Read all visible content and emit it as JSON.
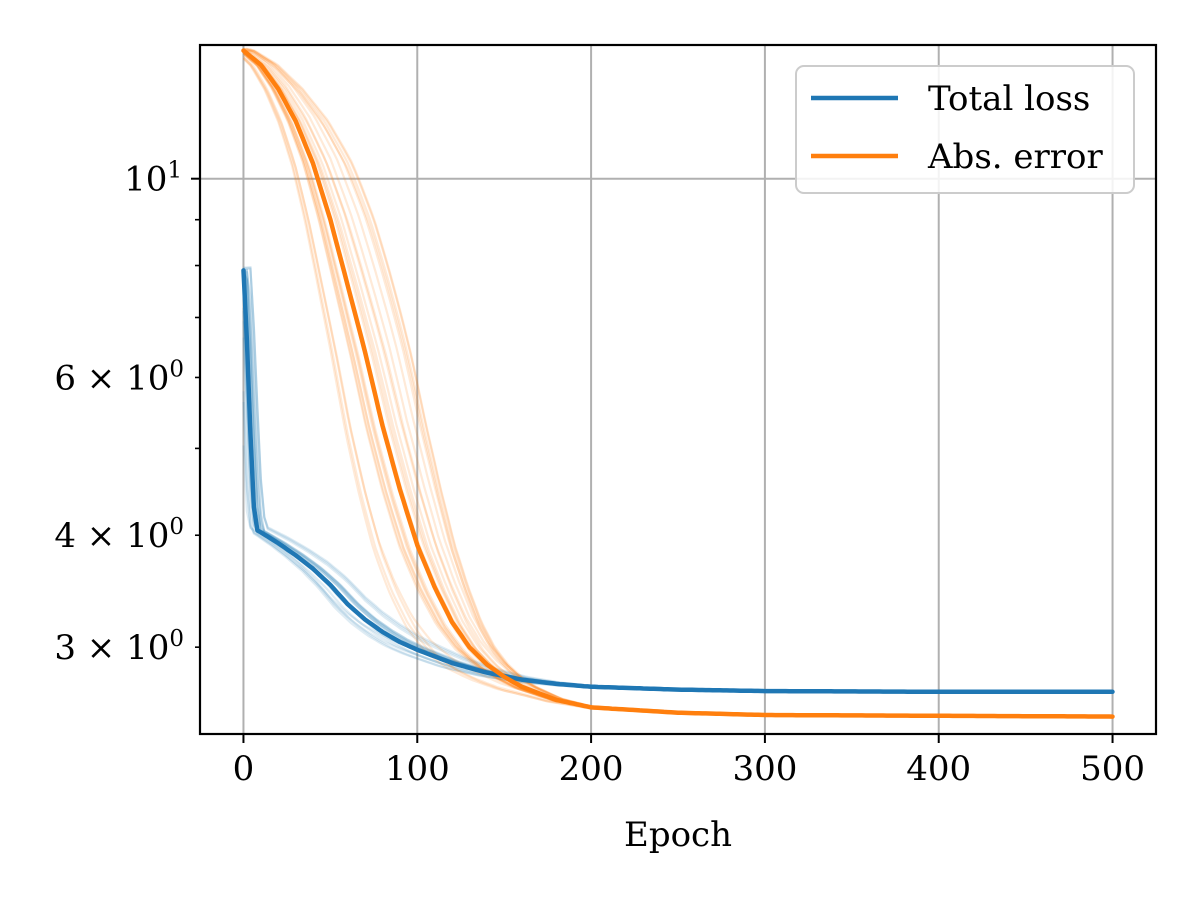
{
  "chart_data": {
    "type": "line",
    "title": "",
    "xlabel": "Epoch",
    "ylabel": "",
    "xscale": "linear",
    "yscale": "log",
    "xlim": [
      -25,
      525
    ],
    "ylim": [
      2.4,
      14.1
    ],
    "grid": true,
    "legend_position": "top-right",
    "x_ticks": [
      {
        "value": 0,
        "label": "0"
      },
      {
        "value": 100,
        "label": "100"
      },
      {
        "value": 200,
        "label": "200"
      },
      {
        "value": 300,
        "label": "300"
      },
      {
        "value": 400,
        "label": "400"
      },
      {
        "value": 500,
        "label": "500"
      }
    ],
    "y_major_ticks": [
      {
        "value": 10,
        "label_base": "10",
        "label_exp": "1"
      }
    ],
    "y_minor_ticks": [
      {
        "value": 3,
        "label_coef": "3",
        "label_base": "10",
        "label_exp": "0"
      },
      {
        "value": 4,
        "label_coef": "4",
        "label_base": "10",
        "label_exp": "0"
      },
      {
        "value": 5,
        "label_coef": "",
        "label_base": "",
        "label_exp": ""
      },
      {
        "value": 6,
        "label_coef": "6",
        "label_base": "10",
        "label_exp": "0"
      },
      {
        "value": 7,
        "label_coef": "",
        "label_base": "",
        "label_exp": ""
      },
      {
        "value": 8,
        "label_coef": "",
        "label_base": "",
        "label_exp": ""
      },
      {
        "value": 9,
        "label_coef": "",
        "label_base": "",
        "label_exp": ""
      }
    ],
    "series": [
      {
        "name": "Total loss",
        "color": "#1f77b4",
        "x": [
          0,
          2,
          4,
          6,
          8,
          10,
          20,
          30,
          40,
          50,
          60,
          70,
          80,
          90,
          100,
          120,
          140,
          160,
          180,
          200,
          250,
          300,
          400,
          500
        ],
        "values": [
          7.9,
          6.6,
          5.2,
          4.3,
          4.05,
          4.03,
          3.92,
          3.8,
          3.67,
          3.52,
          3.35,
          3.22,
          3.12,
          3.04,
          2.98,
          2.88,
          2.81,
          2.76,
          2.73,
          2.71,
          2.69,
          2.68,
          2.675,
          2.675
        ]
      },
      {
        "name": "Abs. error",
        "color": "#ff7f0e",
        "x": [
          0,
          10,
          20,
          30,
          40,
          50,
          60,
          70,
          80,
          90,
          100,
          110,
          120,
          130,
          140,
          150,
          160,
          180,
          200,
          250,
          300,
          400,
          500
        ],
        "values": [
          13.9,
          13.4,
          12.6,
          11.6,
          10.4,
          9.0,
          7.6,
          6.4,
          5.3,
          4.5,
          3.9,
          3.5,
          3.2,
          3.0,
          2.87,
          2.78,
          2.71,
          2.62,
          2.57,
          2.535,
          2.52,
          2.515,
          2.51
        ]
      }
    ]
  }
}
